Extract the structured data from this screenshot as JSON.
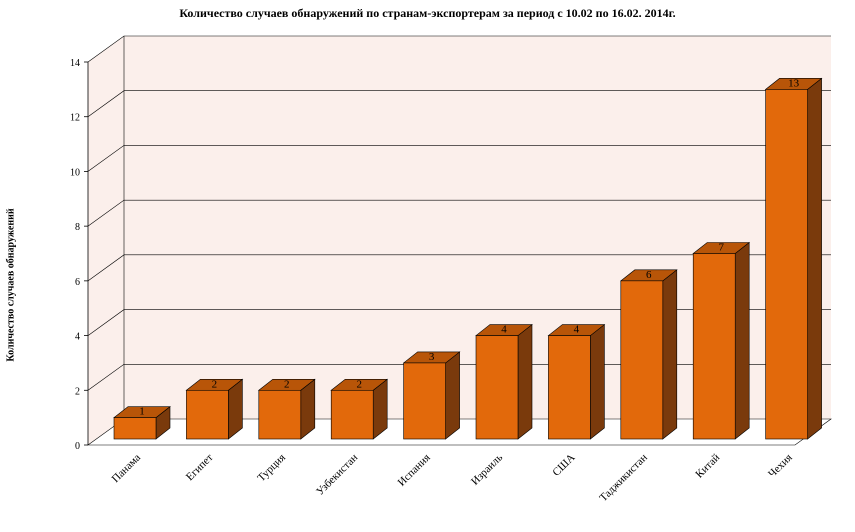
{
  "chart_data": {
    "type": "bar",
    "title": "Количество случаев обнаружений по странам-экспортерам за период с 10.02 по 16.02. 2014г.",
    "xlabel": "",
    "ylabel": "Количество случаев обнаружений",
    "categories": [
      "Панама",
      "Египет",
      "Турция",
      "Узбекистан",
      "Испания",
      "Израиль",
      "США",
      "Таджикистан",
      "Китай",
      "Чехия"
    ],
    "values": [
      1,
      2,
      2,
      2,
      3,
      4,
      4,
      6,
      7,
      13
    ],
    "ylim": [
      0,
      14
    ],
    "yticks": [
      0,
      2,
      4,
      6,
      8,
      10,
      12,
      14
    ],
    "grid": true,
    "legend": "none",
    "style": "3d",
    "colors": {
      "bar_front": "#E2690B",
      "bar_top": "#B85508",
      "bar_side": "#7A3A0C",
      "wall": "#FBEFEB",
      "grid": "#000000"
    }
  }
}
